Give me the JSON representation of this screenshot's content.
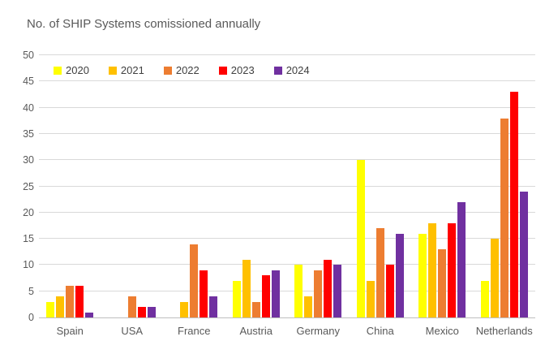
{
  "chart_data": {
    "type": "bar",
    "title": "No. of SHIP Systems comissioned annually",
    "categories": [
      "Spain",
      "USA",
      "France",
      "Austria",
      "Germany",
      "China",
      "Mexico",
      "Netherlands"
    ],
    "series": [
      {
        "name": "2020",
        "color": "#FFFF00",
        "values": [
          3,
          0,
          0,
          7,
          10,
          30,
          16,
          7
        ]
      },
      {
        "name": "2021",
        "color": "#FFC000",
        "values": [
          4,
          0,
          3,
          11,
          4,
          7,
          18,
          15
        ]
      },
      {
        "name": "2022",
        "color": "#ED7D31",
        "values": [
          6,
          4,
          14,
          3,
          9,
          17,
          13,
          38
        ]
      },
      {
        "name": "2023",
        "color": "#FF0000",
        "values": [
          6,
          2,
          9,
          8,
          11,
          10,
          18,
          43
        ]
      },
      {
        "name": "2024",
        "color": "#7030A0",
        "values": [
          1,
          2,
          4,
          9,
          10,
          16,
          22,
          24
        ]
      }
    ],
    "xlabel": "",
    "ylabel": "",
    "ylim": [
      0,
      50
    ],
    "ytick_step": 5,
    "grid": "horizontal",
    "legend_position": "top-left-inside",
    "colors": {
      "grid": "#D9D9D9",
      "axis_line": "#BFBFBF",
      "axis_text": "#595959",
      "legend_text": "#404040",
      "background": "#FFFFFF"
    }
  }
}
